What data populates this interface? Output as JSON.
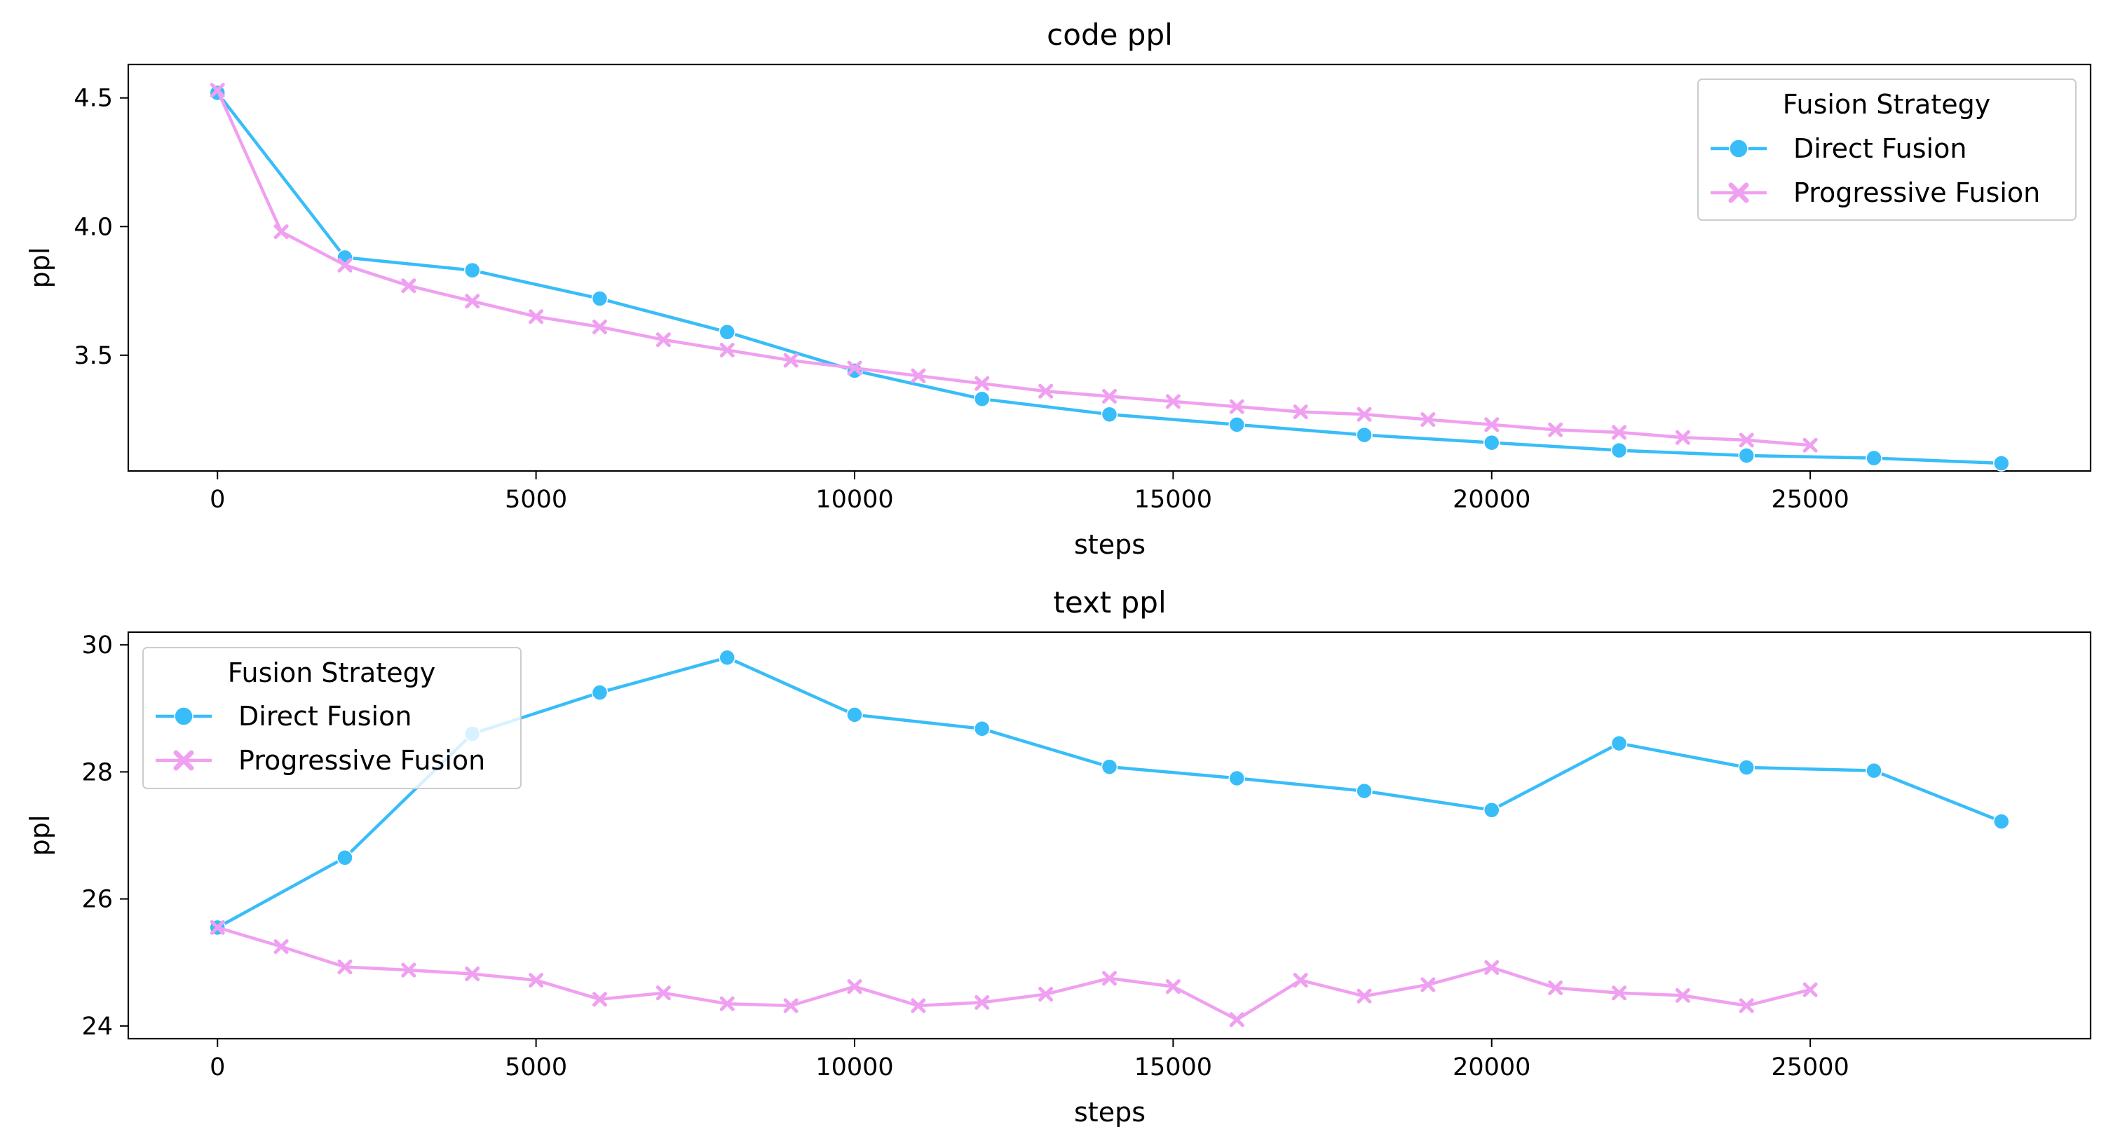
{
  "colors": {
    "direct": "#38bdf8",
    "progressive": "#f0a0f0",
    "axes": "#000000",
    "legend_border": "#cccccc"
  },
  "chart_data": [
    {
      "type": "line",
      "title": "code ppl",
      "xlabel": "steps",
      "ylabel": "ppl",
      "xlim": [
        -1400,
        29400
      ],
      "ylim": [
        3.05,
        4.63
      ],
      "xticks": [
        0,
        5000,
        10000,
        15000,
        20000,
        25000
      ],
      "yticks": [
        3.5,
        4.0,
        4.5
      ],
      "ytick_labels": [
        "3.5",
        "4.0",
        "4.5"
      ],
      "grid": false,
      "legend": {
        "title": "Fusion Strategy",
        "placement": "top-right"
      },
      "series": [
        {
          "name": "Direct Fusion",
          "marker": "circle",
          "x": [
            0,
            2000,
            4000,
            6000,
            8000,
            10000,
            12000,
            14000,
            16000,
            18000,
            20000,
            22000,
            24000,
            26000,
            28000
          ],
          "y": [
            4.52,
            3.88,
            3.83,
            3.72,
            3.59,
            3.44,
            3.33,
            3.27,
            3.23,
            3.19,
            3.16,
            3.13,
            3.11,
            3.1,
            3.08
          ]
        },
        {
          "name": "Progressive Fusion",
          "marker": "x",
          "x": [
            0,
            1000,
            2000,
            3000,
            4000,
            5000,
            6000,
            7000,
            8000,
            9000,
            10000,
            11000,
            12000,
            13000,
            14000,
            15000,
            16000,
            17000,
            18000,
            19000,
            20000,
            21000,
            22000,
            23000,
            24000,
            25000
          ],
          "y": [
            4.53,
            3.98,
            3.85,
            3.77,
            3.71,
            3.65,
            3.61,
            3.56,
            3.52,
            3.48,
            3.45,
            3.42,
            3.39,
            3.36,
            3.34,
            3.32,
            3.3,
            3.28,
            3.27,
            3.25,
            3.23,
            3.21,
            3.2,
            3.18,
            3.17,
            3.15
          ]
        }
      ]
    },
    {
      "type": "line",
      "title": "text ppl",
      "xlabel": "steps",
      "ylabel": "ppl",
      "xlim": [
        -1400,
        29400
      ],
      "ylim": [
        23.8,
        30.2
      ],
      "xticks": [
        0,
        5000,
        10000,
        15000,
        20000,
        25000
      ],
      "yticks": [
        24,
        26,
        28,
        30
      ],
      "ytick_labels": [
        "24",
        "26",
        "28",
        "30"
      ],
      "grid": false,
      "legend": {
        "title": "Fusion Strategy",
        "placement": "top-left"
      },
      "series": [
        {
          "name": "Direct Fusion",
          "marker": "circle",
          "x": [
            0,
            2000,
            4000,
            6000,
            8000,
            10000,
            12000,
            14000,
            16000,
            18000,
            20000,
            22000,
            24000,
            26000,
            28000
          ],
          "y": [
            25.55,
            26.65,
            28.6,
            29.25,
            29.8,
            28.9,
            28.68,
            28.08,
            27.9,
            27.7,
            27.4,
            28.45,
            28.07,
            28.02,
            27.22
          ]
        },
        {
          "name": "Progressive Fusion",
          "marker": "x",
          "x": [
            0,
            1000,
            2000,
            3000,
            4000,
            5000,
            6000,
            7000,
            8000,
            9000,
            10000,
            11000,
            12000,
            13000,
            14000,
            15000,
            16000,
            17000,
            18000,
            19000,
            20000,
            21000,
            22000,
            23000,
            24000,
            25000
          ],
          "y": [
            25.55,
            25.25,
            24.93,
            24.88,
            24.82,
            24.72,
            24.42,
            24.52,
            24.35,
            24.32,
            24.62,
            24.32,
            24.37,
            24.5,
            24.75,
            24.62,
            24.1,
            24.72,
            24.47,
            24.65,
            24.92,
            24.6,
            24.52,
            24.48,
            24.32,
            24.57
          ]
        }
      ]
    }
  ]
}
